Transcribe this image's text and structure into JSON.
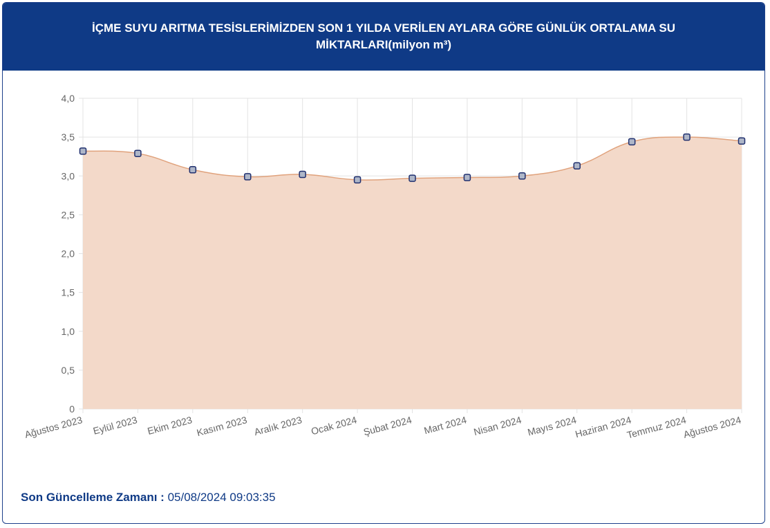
{
  "header": {
    "title_line1": "İÇME SUYU ARITMA TESİSLERİMİZDEN SON 1 YILDA VERİLEN AYLARA GÖRE GÜNLÜK ORTALAMA SU",
    "title_line2": "MİKTARLARI(milyon m³)"
  },
  "footer": {
    "label": "Son Güncelleme Zamanı :",
    "value": "05/08/2024 09:03:35"
  },
  "colors": {
    "header_bg": "#0f3a86",
    "area_fill": "#f3d9c9",
    "line": "#e0a27c",
    "point_fill": "#aeb6c8",
    "point_stroke": "#1f2f6e",
    "grid": "#e3e3e3",
    "axis_text": "#666666"
  },
  "chart_data": {
    "type": "area",
    "categories": [
      "Ağustos 2023",
      "Eylül 2023",
      "Ekim 2023",
      "Kasım 2023",
      "Aralık 2023",
      "Ocak 2024",
      "Şubat 2024",
      "Mart 2024",
      "Nisan 2024",
      "Mayıs 2024",
      "Haziran 2024",
      "Temmuz 2024",
      "Ağustos 2024"
    ],
    "series": [
      {
        "values": [
          3.32,
          3.29,
          3.08,
          2.99,
          3.02,
          2.95,
          2.97,
          2.98,
          3.0,
          3.13,
          3.44,
          3.5,
          3.45
        ]
      }
    ],
    "yticks": [
      "0",
      "0,5",
      "1,0",
      "1,5",
      "2,0",
      "2,5",
      "3,0",
      "3,5",
      "4,0"
    ],
    "ylim": [
      0,
      4
    ],
    "ystep": 0.5,
    "grid": true,
    "legend": "none"
  }
}
